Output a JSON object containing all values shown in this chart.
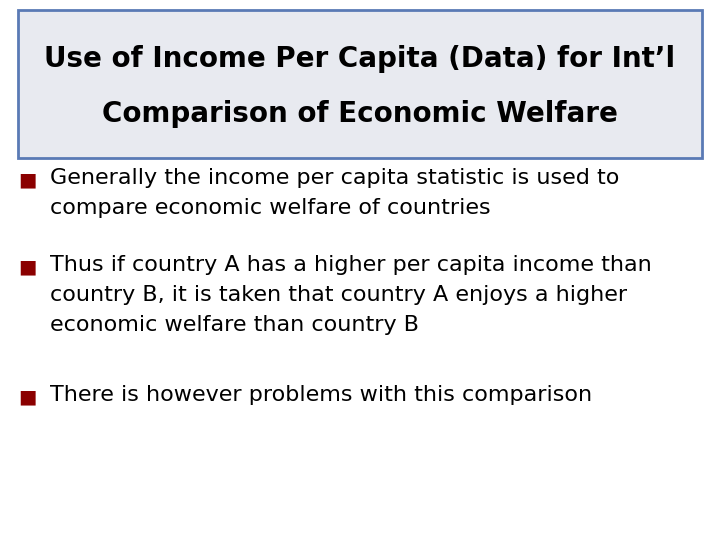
{
  "title_line1": "Use of Income Per Capita (Data) for Int’l",
  "title_line2": "Comparison of Economic Welfare",
  "title_bg_color": "#e8eaf0",
  "title_border_color": "#5a7ab5",
  "title_text_color": "#000000",
  "bullet_color": "#8b0000",
  "body_text_color": "#000000",
  "background_color": "#ffffff",
  "bullets": [
    [
      "Generally the income per capita statistic is used to",
      "compare economic welfare of countries"
    ],
    [
      "Thus if country A has a higher per capita income than",
      "country B, it is taken that country A enjoys a higher",
      "economic welfare than country B"
    ],
    [
      "There is however problems with this comparison"
    ]
  ],
  "title_fontsize": 20,
  "body_fontsize": 16,
  "bullet_fontsize": 14
}
